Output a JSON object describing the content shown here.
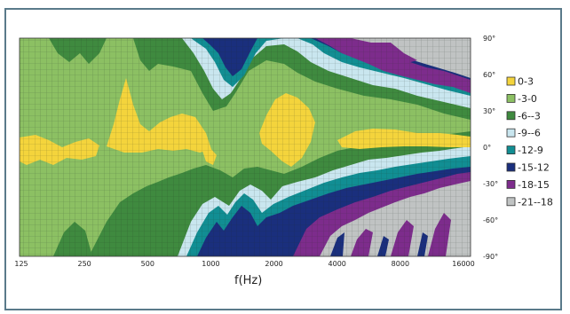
{
  "chart_data": {
    "type": "heatmap",
    "title": "",
    "xlabel": "f(Hz)",
    "ylabel": "",
    "x_scale": "log",
    "x_ticks": [
      "125",
      "250",
      "500",
      "1000",
      "2000",
      "4000",
      "8000",
      "16000"
    ],
    "y_ticks": [
      "90°",
      "60°",
      "30°",
      "0°",
      "-30°",
      "-60°",
      "-90°"
    ],
    "y_range": [
      -90,
      90
    ],
    "grid": true,
    "legend_position": "right",
    "legend": [
      {
        "label": "0-3",
        "color": "#f4d43c"
      },
      {
        "label": "-3-0",
        "color": "#8cc063"
      },
      {
        "label": "-6--3",
        "color": "#3f8a3f"
      },
      {
        "label": "-9--6",
        "color": "#c9e6ef"
      },
      {
        "label": "-12-9",
        "color": "#118e93"
      },
      {
        "label": "-15-12",
        "color": "#1a2f7d"
      },
      {
        "label": "-18-15",
        "color": "#7d2c8c"
      },
      {
        "label": "-21--18",
        "color": "#c0c3c3"
      }
    ]
  }
}
